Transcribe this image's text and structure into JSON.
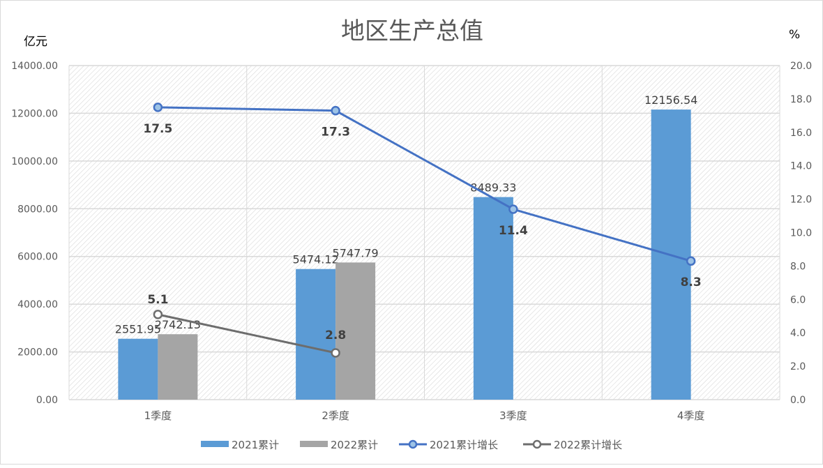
{
  "chart_data": {
    "type": "bar+line",
    "title": "地区生产总值",
    "ylabel_left": "亿元",
    "ylabel_right": "%",
    "categories": [
      "1季度",
      "2季度",
      "3季度",
      "4季度"
    ],
    "ylim_left": [
      0,
      14000
    ],
    "yticks_left": [
      "0.00",
      "2000.00",
      "4000.00",
      "6000.00",
      "8000.00",
      "10000.00",
      "12000.00",
      "14000.00"
    ],
    "ylim_right": [
      0,
      20
    ],
    "yticks_right": [
      "0.0",
      "2.0",
      "4.0",
      "6.0",
      "8.0",
      "10.0",
      "12.0",
      "14.0",
      "16.0",
      "18.0",
      "20.0"
    ],
    "grid": true,
    "legend_placement": "bottom",
    "bar_series": [
      {
        "name": "2021累计",
        "color": "#5b9bd5",
        "values": [
          2551.95,
          5474.12,
          8489.33,
          12156.54
        ],
        "labels": [
          "2551.95",
          "5474.12",
          "8489.33",
          "12156.54"
        ]
      },
      {
        "name": "2022累计",
        "color": "#a5a5a5",
        "values": [
          2742.13,
          5747.79,
          null,
          null
        ],
        "labels": [
          "2742.13",
          "5747.79",
          "",
          ""
        ]
      }
    ],
    "line_series": [
      {
        "name": "2021累计增长",
        "color": "#4472c4",
        "marker_fill": "#9dc3e6",
        "values": [
          17.5,
          17.3,
          11.4,
          8.3
        ],
        "labels": [
          "17.5",
          "17.3",
          "11.4",
          "8.3"
        ]
      },
      {
        "name": "2022累计增长",
        "color": "#6d6d6d",
        "marker_fill": "#ffffff",
        "values": [
          5.1,
          2.8,
          null,
          null
        ],
        "labels": [
          "5.1",
          "2.8",
          "",
          ""
        ]
      }
    ]
  }
}
